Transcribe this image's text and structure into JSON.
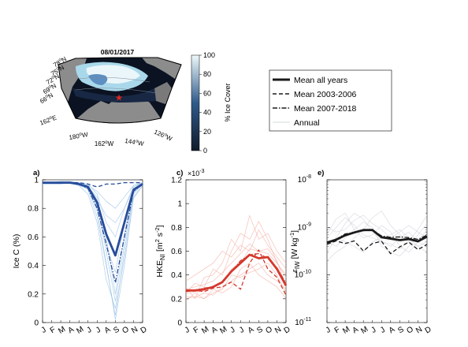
{
  "map": {
    "date": "08/01/2017",
    "lat_labels": [
      "78",
      "75",
      "72",
      "69",
      "66"
    ],
    "lat_suffix": "N",
    "lon_labels": [
      "162",
      "180",
      "162",
      "144",
      "126"
    ],
    "lon_suffixes": [
      "E",
      "W",
      "W",
      "W",
      "W"
    ],
    "colorbar": {
      "label": "% Ice Cover",
      "ticks": [
        "100",
        "80",
        "60",
        "40",
        "20",
        "0"
      ],
      "colors": {
        "low": "#101b2c",
        "mid": "#2f5a8a",
        "high": "#eef9fb"
      }
    },
    "marker_color": "#e0261e",
    "land_color": "#8c8c8c"
  },
  "legend": [
    {
      "label": "Mean all years",
      "style": "thick-solid"
    },
    {
      "label": "Mean 2003-2006",
      "style": "dashed"
    },
    {
      "label": "Mean 2007-2018",
      "style": "dashdot"
    },
    {
      "label": "Annual",
      "style": "thin-light"
    }
  ],
  "chart_data": [
    {
      "type": "line",
      "panel": "a)",
      "ylabel": "Ice C (%)",
      "ylim": [
        0,
        1
      ],
      "yticks": [
        "0",
        "0.2",
        "0.4",
        "0.6",
        "0.8",
        "1"
      ],
      "categories": [
        "J",
        "F",
        "M",
        "A",
        "M",
        "J",
        "J",
        "A",
        "S",
        "O",
        "N",
        "D"
      ],
      "color": "#274c9a",
      "annual_color": "#9cc3e6",
      "series": [
        {
          "name": "Mean all years",
          "style": "thick",
          "values": [
            0.98,
            0.98,
            0.98,
            0.98,
            0.97,
            0.95,
            0.84,
            0.62,
            0.47,
            0.7,
            0.93,
            0.97
          ]
        },
        {
          "name": "Mean 2003-2006",
          "style": "dash",
          "values": [
            0.98,
            0.98,
            0.98,
            0.98,
            0.98,
            0.97,
            0.95,
            0.97,
            0.97,
            0.98,
            0.98,
            0.98
          ]
        },
        {
          "name": "Mean 2007-2018",
          "style": "dashdot",
          "values": [
            0.98,
            0.98,
            0.98,
            0.98,
            0.97,
            0.94,
            0.8,
            0.55,
            0.28,
            0.6,
            0.92,
            0.97
          ]
        }
      ],
      "annual": [
        [
          0.98,
          0.98,
          0.99,
          0.99,
          0.98,
          0.96,
          0.85,
          0.55,
          0.35,
          0.7,
          0.95,
          0.98
        ],
        [
          0.98,
          0.98,
          0.98,
          0.98,
          0.97,
          0.93,
          0.74,
          0.4,
          0.05,
          0.5,
          0.9,
          0.97
        ],
        [
          0.97,
          0.98,
          0.98,
          0.98,
          0.96,
          0.94,
          0.78,
          0.42,
          0.02,
          0.4,
          0.88,
          0.96
        ],
        [
          0.98,
          0.98,
          0.98,
          0.98,
          0.98,
          0.97,
          0.9,
          0.7,
          0.6,
          0.8,
          0.96,
          0.98
        ],
        [
          0.98,
          0.98,
          0.98,
          0.98,
          0.97,
          0.95,
          0.82,
          0.5,
          0.15,
          0.55,
          0.91,
          0.97
        ],
        [
          0.98,
          0.98,
          0.98,
          0.98,
          0.98,
          0.96,
          0.92,
          0.85,
          0.8,
          0.88,
          0.96,
          0.98
        ],
        [
          0.97,
          0.97,
          0.97,
          0.98,
          0.96,
          0.9,
          0.7,
          0.3,
          0.1,
          0.45,
          0.87,
          0.96
        ],
        [
          0.98,
          0.98,
          0.98,
          0.98,
          0.97,
          0.95,
          0.88,
          0.6,
          0.2,
          0.62,
          0.93,
          0.98
        ],
        [
          0.98,
          0.98,
          0.98,
          0.98,
          0.97,
          0.96,
          0.86,
          0.75,
          0.7,
          0.8,
          0.94,
          0.98
        ]
      ]
    },
    {
      "type": "line",
      "panel": "c)",
      "ylabel": "HKE",
      "ylabel_sub": "NI",
      "ylabel_units": " [m",
      "ylabel_exp1": "2",
      "ylabel_units2": " s",
      "ylabel_exp2": "-2",
      "ylabel_close": "]",
      "exponent_base": "×10",
      "exponent_power": "-3",
      "ylim": [
        0,
        0.0012
      ],
      "yticks": [
        "0",
        "0.2",
        "0.4",
        "0.6",
        "0.8",
        "1",
        "1.2"
      ],
      "categories": [
        "J",
        "F",
        "M",
        "A",
        "M",
        "J",
        "J",
        "A",
        "S",
        "O",
        "N",
        "D"
      ],
      "color": "#d4382c",
      "annual_color": "#f2b1a8",
      "series": [
        {
          "name": "Mean all years",
          "style": "thick",
          "values": [
            0.00027,
            0.00027,
            0.00028,
            0.0003,
            0.00034,
            0.00043,
            0.0005,
            0.00057,
            0.00054,
            0.00055,
            0.00045,
            0.00031
          ]
        },
        {
          "name": "Mean 2003-2006",
          "style": "dash",
          "values": [
            0.00026,
            0.00027,
            0.00026,
            0.00029,
            0.0003,
            0.00034,
            0.00028,
            0.0005,
            0.00061,
            0.00045,
            0.00038,
            0.00023
          ]
        },
        {
          "name": "Mean 2007-2018",
          "style": "dashdot",
          "values": [
            0.00027,
            0.00027,
            0.00029,
            0.0003,
            0.00034,
            0.00043,
            0.00052,
            0.00057,
            0.00058,
            0.00054,
            0.00046,
            0.00033
          ]
        }
      ],
      "annual": [
        [
          0.00025,
          0.00033,
          0.0003,
          0.00045,
          0.0004,
          0.0006,
          0.00075,
          0.0007,
          0.00085,
          0.0007,
          0.0005,
          0.0004
        ],
        [
          0.00022,
          0.00021,
          0.00025,
          0.00023,
          0.0003,
          0.00035,
          0.0004,
          0.00045,
          0.0005,
          0.0004,
          0.00035,
          0.00028
        ],
        [
          0.0003,
          0.0002,
          0.00038,
          0.0004,
          0.0005,
          0.0007,
          0.0006,
          0.0009,
          0.0007,
          0.00075,
          0.0006,
          0.0005
        ],
        [
          0.00018,
          0.00025,
          0.0002,
          0.00028,
          0.00025,
          0.0003,
          0.00045,
          0.0005,
          0.0004,
          0.00035,
          0.0003,
          0.0002
        ],
        [
          0.00035,
          0.0004,
          0.00045,
          0.0005,
          0.0006,
          0.00055,
          0.00065,
          0.0006,
          0.00078,
          0.00065,
          0.00055,
          0.00045
        ],
        [
          0.0002,
          0.00022,
          0.0002,
          0.00025,
          0.00028,
          0.0004,
          0.00038,
          0.00042,
          0.00045,
          0.0005,
          0.0004,
          0.00025
        ],
        [
          0.00028,
          0.0003,
          0.00032,
          0.00035,
          0.00042,
          0.0005,
          0.00058,
          0.00066,
          0.0006,
          0.00058,
          0.0005,
          0.00038
        ],
        [
          0.00024,
          0.00026,
          0.00027,
          0.0003,
          0.00033,
          0.00045,
          0.0005,
          0.00062,
          0.0006,
          0.00062,
          0.00052,
          0.0003
        ]
      ]
    },
    {
      "type": "line",
      "panel": "e)",
      "ylabel": "ε",
      "ylabel_sub": "IW",
      "ylabel_units": " [W kg",
      "ylabel_exp1": "-1",
      "ylabel_close": "]",
      "yscale": "log",
      "ylim": [
        1e-11,
        1e-08
      ],
      "ytick_base": "10",
      "ytick_exps": [
        "-11",
        "-10",
        "-9",
        "-8"
      ],
      "categories": [
        "J",
        "F",
        "M",
        "A",
        "M",
        "J",
        "J",
        "A",
        "S",
        "O",
        "N",
        "D"
      ],
      "color": "#1a1a1a",
      "annual_color": "#cfd3da",
      "series": [
        {
          "name": "Mean all years",
          "style": "thick",
          "values": [
            4.8e-10,
            5.5e-10,
            6.8e-10,
            7.8e-10,
            8.8e-10,
            8.8e-10,
            6.2e-10,
            5.8e-10,
            5.4e-10,
            5.7e-10,
            5.1e-10,
            6.4e-10
          ]
        },
        {
          "name": "Mean 2003-2006",
          "style": "dash",
          "values": [
            4.4e-10,
            5.2e-10,
            4.6e-10,
            5.2e-10,
            3.2e-10,
            4.6e-10,
            5.1e-10,
            2.8e-10,
            3.9e-10,
            4.9e-10,
            3.4e-10,
            4.4e-10
          ]
        },
        {
          "name": "Mean 2007-2018",
          "style": "dashdot",
          "values": [
            4.9e-10,
            5.6e-10,
            7.3e-10,
            7.8e-10,
            8.5e-10,
            8.8e-10,
            6.6e-10,
            6.2e-10,
            6.3e-10,
            6.1e-10,
            5.6e-10,
            6.9e-10
          ]
        }
      ],
      "annual": [
        [
          3e-10,
          6e-10,
          1.2e-09,
          2e-09,
          1.5e-09,
          8e-10,
          5e-10,
          4e-10,
          6e-10,
          8e-10,
          5e-10,
          4e-10
        ],
        [
          7e-10,
          1.5e-09,
          2e-09,
          9e-10,
          6e-10,
          7e-10,
          1.1e-09,
          8e-10,
          4e-10,
          3e-10,
          5e-10,
          9e-10
        ],
        [
          2e-10,
          3e-10,
          4e-10,
          6e-10,
          9e-10,
          1.6e-09,
          2.2e-09,
          1.1e-09,
          7e-10,
          5e-10,
          4e-10,
          3e-10
        ],
        [
          5e-10,
          4e-10,
          6e-10,
          9e-10,
          1.3e-09,
          1e-09,
          4e-10,
          3e-10,
          2.5e-10,
          4e-10,
          7e-10,
          1.2e-09
        ],
        [
          1e-09,
          8e-10,
          9e-10,
          1.4e-09,
          1.8e-09,
          1.2e-09,
          9e-10,
          6e-10,
          8e-10,
          1.1e-09,
          8e-10,
          6e-10
        ],
        [
          4e-10,
          6e-10,
          5e-10,
          4e-10,
          3e-10,
          5e-10,
          6e-10,
          7e-10,
          9e-10,
          6e-10,
          4e-10,
          5e-10
        ],
        [
          6e-10,
          1e-09,
          1.6e-09,
          1.1e-09,
          7e-10,
          6e-10,
          5e-10,
          4.5e-10,
          3.5e-10,
          5e-10,
          9e-10,
          1.8e-09
        ]
      ]
    }
  ]
}
